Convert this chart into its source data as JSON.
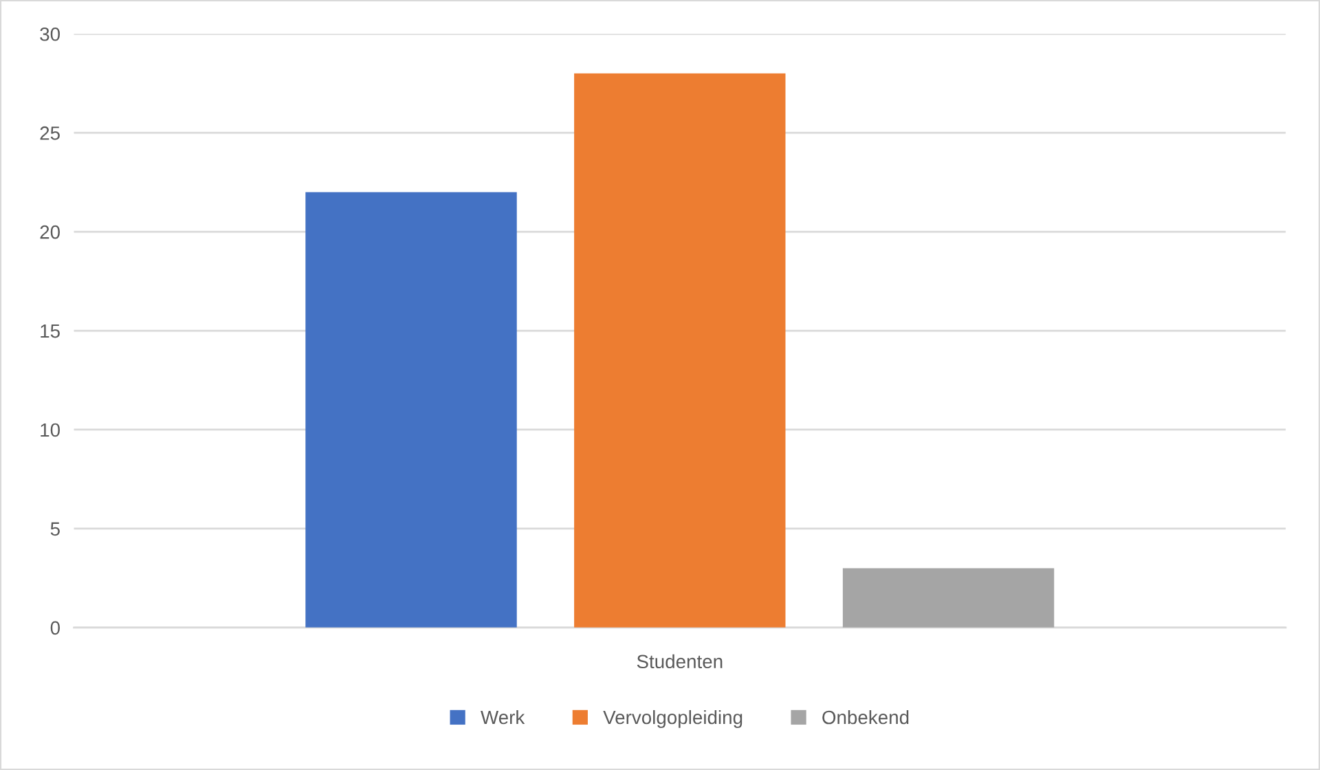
{
  "chart_data": {
    "type": "bar",
    "categories": [
      "Studenten"
    ],
    "series": [
      {
        "name": "Werk",
        "color": "#4472c4",
        "values": [
          22
        ]
      },
      {
        "name": "Vervolgopleiding",
        "color": "#ed7d31",
        "values": [
          28
        ]
      },
      {
        "name": "Onbekend",
        "color": "#a5a5a5",
        "values": [
          3
        ]
      }
    ],
    "ylim": [
      0,
      30
    ],
    "yticks": [
      0,
      5,
      10,
      15,
      20,
      25,
      30
    ],
    "grid": "y",
    "legend": "bottom"
  }
}
